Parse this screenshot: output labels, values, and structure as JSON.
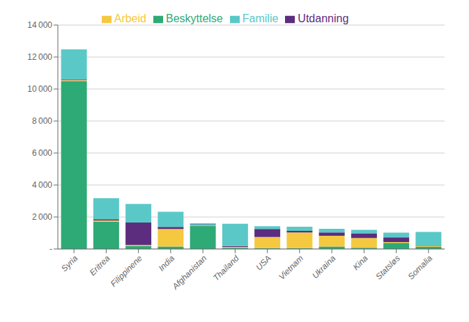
{
  "chart_data": {
    "type": "bar",
    "stacked": true,
    "categories": [
      "Syria",
      "Eritrea",
      "Filippinene",
      "India",
      "Afghanistan",
      "Thailand",
      "USA",
      "Vietnam",
      "Ukraina",
      "Kina",
      "Statsløs",
      "Somalia"
    ],
    "series": [
      {
        "name": "Beskyttelse",
        "color": "#2eaa76",
        "values": [
          10500,
          1700,
          200,
          150,
          1450,
          80,
          50,
          50,
          150,
          80,
          380,
          130
        ]
      },
      {
        "name": "Arbeid",
        "color": "#f5c842",
        "values": [
          50,
          80,
          50,
          1100,
          30,
          50,
          700,
          980,
          680,
          600,
          50,
          40
        ]
      },
      {
        "name": "Utdanning",
        "color": "#5c2d7e",
        "values": [
          50,
          80,
          1400,
          130,
          30,
          50,
          500,
          100,
          200,
          300,
          300,
          30
        ]
      },
      {
        "name": "Familie",
        "color": "#5bc8c8",
        "values": [
          1878,
          1316,
          1169,
          941,
          94,
          1393,
          177,
          256,
          227,
          220,
          295,
          868
        ]
      }
    ],
    "ylim": [
      0,
      14000
    ],
    "yticks": [
      {
        "value": 0,
        "label": "-"
      },
      {
        "value": 2000,
        "label": "2 000"
      },
      {
        "value": 4000,
        "label": "4 000"
      },
      {
        "value": 6000,
        "label": "6 000"
      },
      {
        "value": 8000,
        "label": "8 000"
      },
      {
        "value": 10000,
        "label": "10 000"
      },
      {
        "value": 12000,
        "label": "12 000"
      },
      {
        "value": 14000,
        "label": "14 000"
      }
    ],
    "grid": true,
    "legend": "top"
  }
}
